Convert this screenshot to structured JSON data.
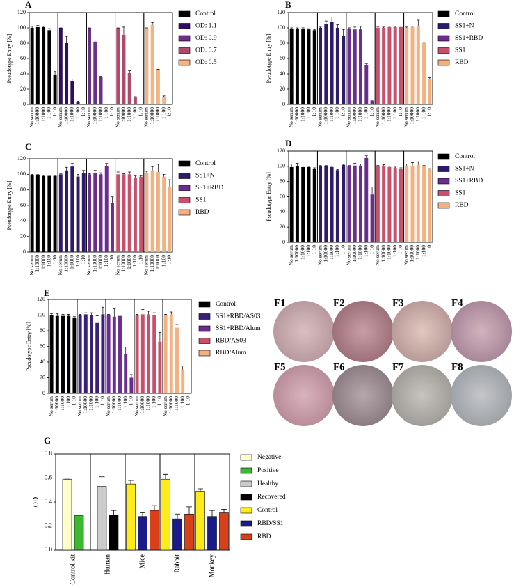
{
  "chart_data": [
    {
      "type": "facetbar",
      "title": "A",
      "y_label": "Pseudotype Entry [%]",
      "categories": [
        "No serum",
        "1:10000",
        "1:1000",
        "1:100",
        "1:10"
      ],
      "ylim": [
        0,
        120
      ],
      "yticks": [
        0,
        20,
        40,
        60,
        80,
        100,
        120
      ],
      "series": [
        {
          "name": "Control",
          "color": "#000000",
          "values": [
            100,
            101,
            101,
            97,
            39
          ],
          "errors": [
            2,
            2,
            1,
            2,
            4
          ]
        },
        {
          "name": "OD: 1.1",
          "color": "#2e0f5e",
          "values": [
            100,
            80,
            30,
            3,
            0
          ],
          "errors": [
            0,
            9,
            3,
            1,
            0
          ]
        },
        {
          "name": "OD: 0.9",
          "color": "#6b2f8a",
          "values": [
            100,
            82,
            36,
            0,
            0
          ],
          "errors": [
            0,
            2,
            1,
            0,
            0
          ]
        },
        {
          "name": "OD: 0.7",
          "color": "#b04a6a",
          "values": [
            100,
            91,
            41,
            9,
            0
          ],
          "errors": [
            0,
            10,
            3,
            1,
            0
          ]
        },
        {
          "name": "OD: 0.5",
          "color": "#f5b382",
          "values": [
            100,
            104,
            45,
            10,
            0
          ],
          "errors": [
            0,
            3,
            1,
            1,
            0
          ]
        }
      ]
    },
    {
      "type": "facetbar",
      "title": "B",
      "y_label": "Pseudotype Entry [%]",
      "categories": [
        "No serum",
        "1:10000",
        "1:1000",
        "1:100",
        "1:10"
      ],
      "ylim": [
        0,
        120
      ],
      "yticks": [
        0,
        20,
        40,
        60,
        80,
        100,
        120
      ],
      "series": [
        {
          "name": "Control",
          "color": "#000000",
          "values": [
            99,
            99,
            99,
            98,
            97
          ],
          "errors": [
            1,
            1,
            1,
            1,
            1
          ]
        },
        {
          "name": "SS1+N",
          "color": "#2d1a6b",
          "values": [
            100,
            105,
            108,
            100,
            90
          ],
          "errors": [
            1,
            4,
            6,
            4,
            8
          ]
        },
        {
          "name": "SS1+RBD",
          "color": "#6a2d8f",
          "values": [
            99,
            98,
            98,
            51,
            5
          ],
          "errors": [
            1,
            3,
            4,
            2,
            1
          ]
        },
        {
          "name": "SS1",
          "color": "#c8506a",
          "values": [
            100,
            100,
            101,
            101,
            101
          ],
          "errors": [
            1,
            1,
            1,
            1,
            1
          ]
        },
        {
          "name": "RBD",
          "color": "#f5b080",
          "values": [
            100,
            101,
            102,
            80,
            33
          ],
          "errors": [
            1,
            1,
            8,
            1,
            2
          ]
        }
      ]
    },
    {
      "type": "facetbar",
      "title": "C",
      "y_label": "Pseudotype Entry [%]",
      "categories": [
        "No serum",
        "1:10000",
        "1:1000",
        "1:100",
        "1:10"
      ],
      "ylim": [
        0,
        120
      ],
      "yticks": [
        0,
        20,
        40,
        60,
        80,
        100,
        120
      ],
      "series": [
        {
          "name": "Control",
          "color": "#000000",
          "values": [
            99,
            99,
            98,
            98,
            98
          ],
          "errors": [
            1,
            1,
            1,
            1,
            1
          ]
        },
        {
          "name": "SS1+N",
          "color": "#2d1a6b",
          "values": [
            100,
            105,
            110,
            97,
            102
          ],
          "errors": [
            1,
            4,
            4,
            3,
            3
          ]
        },
        {
          "name": "SS1+RBD",
          "color": "#6a2d8f",
          "values": [
            100,
            102,
            100,
            111,
            63
          ],
          "errors": [
            1,
            3,
            2,
            3,
            8
          ]
        },
        {
          "name": "SS1",
          "color": "#c8506a",
          "values": [
            100,
            100,
            100,
            95,
            97
          ],
          "errors": [
            3,
            1,
            3,
            3,
            1
          ]
        },
        {
          "name": "RBD",
          "color": "#f5b080",
          "values": [
            102,
            105,
            103,
            97,
            84
          ],
          "errors": [
            2,
            5,
            10,
            3,
            9
          ]
        }
      ]
    },
    {
      "type": "facetbar",
      "title": "D",
      "y_label": "Pseudotype Entry [%]",
      "categories": [
        "No serum",
        "1:10000",
        "1:1000",
        "1:100",
        "1:10"
      ],
      "ylim": [
        0,
        120
      ],
      "yticks": [
        0,
        20,
        40,
        60,
        80,
        100,
        120
      ],
      "series": [
        {
          "name": "Control",
          "color": "#000000",
          "values": [
            99,
            100,
            99,
            99,
            97
          ],
          "errors": [
            4,
            4,
            4,
            1,
            1
          ]
        },
        {
          "name": "SS1+N",
          "color": "#2d1a6b",
          "values": [
            100,
            100,
            99,
            95,
            102
          ],
          "errors": [
            1,
            1,
            1,
            1,
            1
          ]
        },
        {
          "name": "SS1+RBD",
          "color": "#6a2d8f",
          "values": [
            100,
            101,
            101,
            111,
            63
          ],
          "errors": [
            1,
            3,
            2,
            3,
            10
          ]
        },
        {
          "name": "SS1",
          "color": "#c8506a",
          "values": [
            100,
            101,
            99,
            98,
            97
          ],
          "errors": [
            1,
            1,
            1,
            1,
            1
          ]
        },
        {
          "name": "RBD",
          "color": "#f5b080",
          "values": [
            100,
            101,
            102,
            100,
            96
          ],
          "errors": [
            3,
            4,
            4,
            1,
            1
          ]
        }
      ]
    },
    {
      "type": "facetbar",
      "title": "E",
      "y_label": "Pseudotype Entry [%]",
      "categories": [
        "No serum",
        "1:10000",
        "1:1000",
        "1:100",
        "1:10"
      ],
      "ylim": [
        0,
        120
      ],
      "yticks": [
        0,
        20,
        40,
        60,
        80,
        100,
        120
      ],
      "series": [
        {
          "name": "Control",
          "color": "#000000",
          "values": [
            100,
            99,
            99,
            99,
            97
          ],
          "errors": [
            2,
            3,
            2,
            2,
            1
          ]
        },
        {
          "name": "SS1+RBD/AS03",
          "color": "#3a1f7a",
          "values": [
            100,
            101,
            100,
            90,
            101
          ],
          "errors": [
            1,
            2,
            3,
            9,
            9
          ]
        },
        {
          "name": "SS1+RBD/Alum",
          "color": "#6a2d8f",
          "values": [
            100,
            98,
            99,
            50,
            20
          ],
          "errors": [
            1,
            10,
            10,
            9,
            4
          ]
        },
        {
          "name": "RBD/AS03",
          "color": "#c8506a",
          "values": [
            100,
            101,
            101,
            100,
            66
          ],
          "errors": [
            1,
            6,
            4,
            3,
            12
          ]
        },
        {
          "name": "RBD/Alum",
          "color": "#f5b080",
          "values": [
            100,
            101,
            84,
            30,
            null
          ],
          "errors": [
            1,
            3,
            4,
            5,
            null
          ]
        }
      ]
    },
    {
      "type": "bar",
      "title": "G",
      "y_label": "OD",
      "categories": [
        "Control kit",
        "Human",
        "Mice",
        "Rabbit",
        "Monkey"
      ],
      "ylim": [
        0,
        0.8
      ],
      "yticks": [
        {
          "value": 0,
          "label": "0.0"
        },
        0.2,
        0.4,
        0.6,
        0.8
      ],
      "series": [
        {
          "name": "Negative",
          "color": "#ffffc8",
          "values": [
            0.59,
            null,
            null,
            null,
            null
          ],
          "errors": [
            0,
            null,
            null,
            null,
            null
          ]
        },
        {
          "name": "Positive",
          "color": "#3cb832",
          "values": [
            0.29,
            null,
            null,
            null,
            null
          ],
          "errors": [
            0,
            null,
            null,
            null,
            null
          ]
        },
        {
          "name": "Healthy",
          "color": "#cccccc",
          "values": [
            null,
            0.53,
            null,
            null,
            null
          ],
          "errors": [
            null,
            0.08,
            null,
            null,
            null
          ]
        },
        {
          "name": "Recovered",
          "color": "#000000",
          "values": [
            null,
            0.29,
            null,
            null,
            null
          ],
          "errors": [
            null,
            0.04,
            null,
            null,
            null
          ]
        },
        {
          "name": "Control",
          "color": "#ffeb1a",
          "values": [
            null,
            null,
            0.55,
            0.59,
            0.49
          ],
          "errors": [
            null,
            null,
            0.03,
            0.04,
            0.02
          ]
        },
        {
          "name": "RBD/SS1",
          "color": "#1a1a8c",
          "values": [
            null,
            null,
            0.28,
            0.26,
            0.28
          ],
          "errors": [
            null,
            null,
            0.03,
            0.04,
            0.05
          ]
        },
        {
          "name": "RBD",
          "color": "#d9401a",
          "values": [
            null,
            null,
            0.33,
            0.3,
            0.31
          ],
          "errors": [
            null,
            null,
            0.04,
            0.06,
            0.03
          ]
        }
      ]
    }
  ],
  "figure_images": [
    {
      "label": "F1"
    },
    {
      "label": "F2"
    },
    {
      "label": "F3"
    },
    {
      "label": "F4"
    },
    {
      "label": "F5"
    },
    {
      "label": "F6"
    },
    {
      "label": "F7"
    },
    {
      "label": "F8"
    }
  ]
}
